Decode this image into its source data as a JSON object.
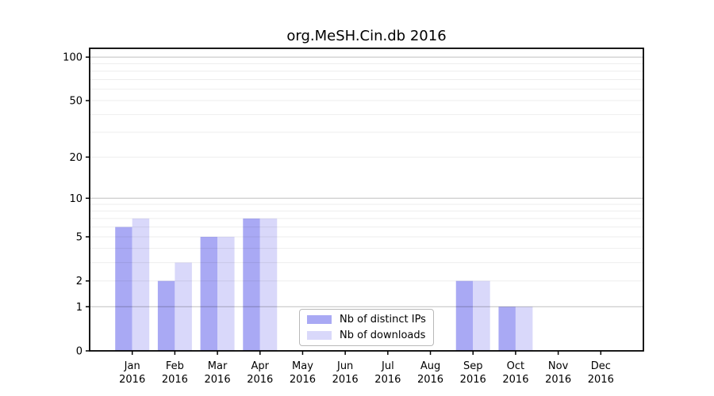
{
  "chart_data": {
    "type": "bar",
    "title": "org.MeSH.Cin.db 2016",
    "year": "2016",
    "categories": [
      "Jan",
      "Feb",
      "Mar",
      "Apr",
      "May",
      "Jun",
      "Jul",
      "Aug",
      "Sep",
      "Oct",
      "Nov",
      "Dec"
    ],
    "series": [
      {
        "name": "Nb of distinct IPs",
        "color": "#a9a9f4",
        "values": [
          6,
          2,
          5,
          7,
          0,
          0,
          0,
          0,
          2,
          1,
          0,
          0
        ]
      },
      {
        "name": "Nb of downloads",
        "color": "#d9d8fa",
        "values": [
          7,
          3,
          5,
          7,
          0,
          0,
          0,
          0,
          2,
          1,
          0,
          0
        ]
      }
    ],
    "yscale": "log1p",
    "ylim": [
      0,
      115
    ],
    "y_ticks": [
      0,
      1,
      2,
      5,
      10,
      20,
      50,
      100
    ],
    "minor_gridlines": [
      2,
      3,
      4,
      5,
      6,
      7,
      8,
      9,
      20,
      30,
      40,
      50,
      60,
      70,
      80,
      90
    ],
    "major_gridlines": [
      1,
      10,
      100
    ],
    "xlabel": "",
    "ylabel": "",
    "grid": true,
    "legend_position": "bottom-center"
  }
}
